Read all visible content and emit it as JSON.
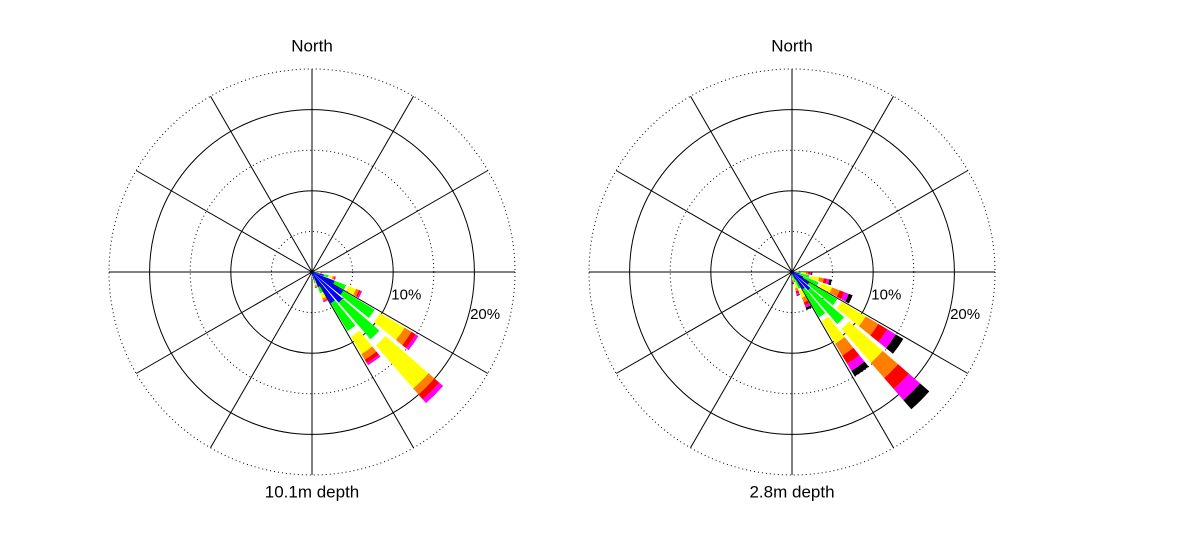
{
  "chart_data": [
    {
      "type": "rose",
      "north_label": "North",
      "xlabel": "10.1m depth",
      "rlim": [
        0,
        25
      ],
      "rticks": [
        {
          "value": 10,
          "label": "10%"
        },
        {
          "value": 20,
          "label": "20%"
        }
      ],
      "rminor": [
        5,
        15,
        25
      ],
      "directions": [
        75,
        85,
        95,
        105,
        115,
        125,
        135,
        145,
        155,
        165,
        175,
        185
      ],
      "series": [
        {
          "color": "#0000ff",
          "values": [
            0.3,
            0.3,
            0.6,
            1.5,
            3,
            4.5,
            5,
            4.5,
            2,
            1,
            0.5,
            0.3
          ]
        },
        {
          "color": "#00ff00",
          "values": [
            0.1,
            0.1,
            0.2,
            0.6,
            1.5,
            4.5,
            6,
            4,
            0.8,
            0.4,
            0.2,
            0.1
          ]
        },
        {
          "color": "#ffffff",
          "values": [
            0,
            0,
            0,
            0.1,
            0.3,
            0.8,
            1,
            0.8,
            0.2,
            0,
            0,
            0
          ]
        },
        {
          "color": "#ffff00",
          "values": [
            0.1,
            0.1,
            0.2,
            0.4,
            1,
            3.5,
            7,
            2.5,
            0.5,
            0.3,
            0.2,
            0.1
          ]
        },
        {
          "color": "#ff8000",
          "values": [
            0.1,
            0.1,
            0.1,
            0.2,
            0.4,
            1,
            1,
            0.8,
            0.3,
            0.2,
            0.1,
            0.1
          ]
        },
        {
          "color": "#ff0000",
          "values": [
            0,
            0,
            0.1,
            0.1,
            0.2,
            0.6,
            0.8,
            0.5,
            0.1,
            0.1,
            0,
            0
          ]
        },
        {
          "color": "#ff00ff",
          "values": [
            0,
            0,
            0,
            0.1,
            0.2,
            0.4,
            0.6,
            0.3,
            0.1,
            0,
            0,
            0
          ]
        },
        {
          "color": "#000000",
          "values": [
            0,
            0,
            0,
            0,
            0,
            0,
            0,
            0,
            0,
            0,
            0,
            0
          ]
        }
      ]
    },
    {
      "type": "rose",
      "north_label": "North",
      "xlabel": "2.8m depth",
      "rlim": [
        0,
        25
      ],
      "rticks": [
        {
          "value": 10,
          "label": "10%"
        },
        {
          "value": 20,
          "label": "20%"
        }
      ],
      "rminor": [
        5,
        15,
        25
      ],
      "directions": [
        85,
        95,
        105,
        115,
        125,
        135,
        145,
        155,
        165,
        175
      ],
      "series": [
        {
          "color": "#0000ff",
          "values": [
            0.3,
            0.5,
            1,
            1.5,
            2.5,
            3,
            2.5,
            1,
            0.6,
            0.3
          ]
        },
        {
          "color": "#00ff00",
          "values": [
            0.3,
            0.6,
            1.2,
            2,
            4,
            5.5,
            4,
            1.2,
            0.7,
            0.4
          ]
        },
        {
          "color": "#ffffff",
          "values": [
            0,
            0.1,
            0.2,
            0.3,
            0.6,
            0.8,
            0.6,
            0.2,
            0.1,
            0
          ]
        },
        {
          "color": "#ffff00",
          "values": [
            0.2,
            0.5,
            1,
            1.5,
            3.5,
            5.5,
            3.2,
            1,
            0.6,
            0.3
          ]
        },
        {
          "color": "#ff8000",
          "values": [
            0.1,
            0.3,
            0.6,
            1,
            1.8,
            2.5,
            1.7,
            0.6,
            0.4,
            0.2
          ]
        },
        {
          "color": "#ff0000",
          "values": [
            0.1,
            0.2,
            0.4,
            0.6,
            1.3,
            1.8,
            1.2,
            0.4,
            0.3,
            0.1
          ]
        },
        {
          "color": "#ff00ff",
          "values": [
            0,
            0.2,
            0.3,
            0.6,
            1.2,
            1.8,
            1,
            0.3,
            0.2,
            0.1
          ]
        },
        {
          "color": "#000000",
          "values": [
            0,
            0.1,
            0.3,
            0.5,
            1.1,
            1.5,
            0.8,
            0.3,
            0.1,
            0.1
          ]
        }
      ]
    }
  ]
}
